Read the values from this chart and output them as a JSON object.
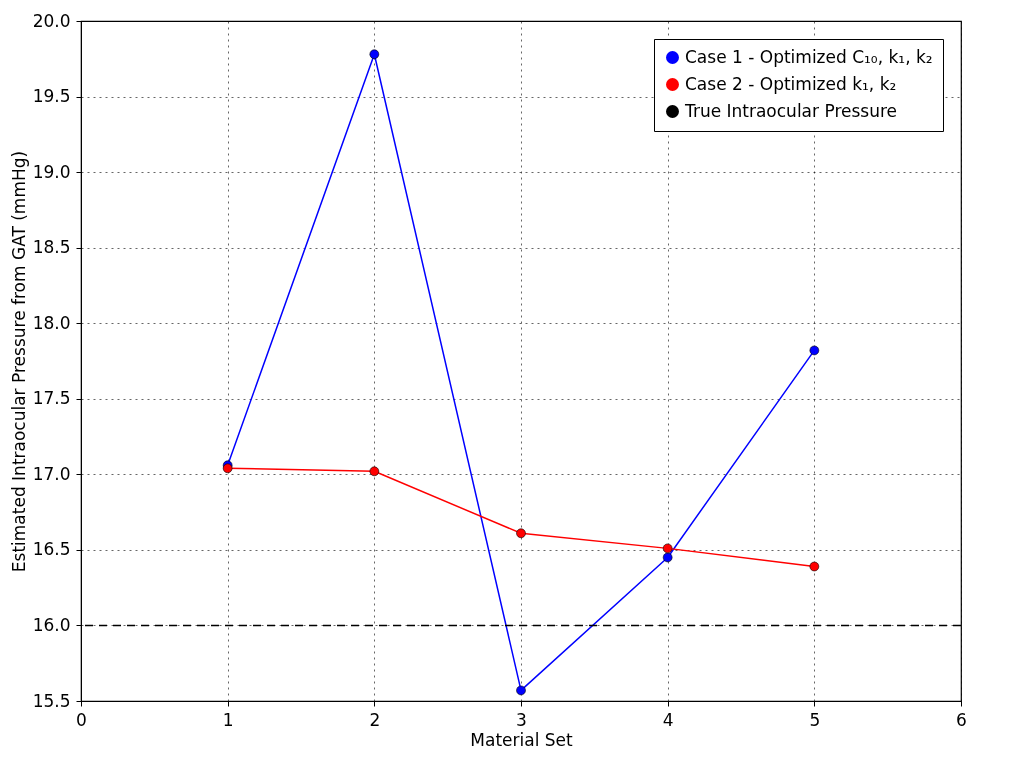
{
  "chart_data": {
    "type": "line",
    "xlabel": "Material Set",
    "ylabel": "Estimated Intraocular Pressure from GAT (mmHg)",
    "x": [
      1,
      2,
      3,
      4,
      5
    ],
    "series": [
      {
        "name": "Case 1 - Optimized C₁₀, k₁, k₂",
        "color": "#0000ff",
        "values": [
          17.06,
          19.78,
          15.57,
          16.45,
          17.82
        ]
      },
      {
        "name": "Case 2 - Optimized k₁, k₂",
        "color": "#ff0000",
        "values": [
          17.04,
          17.02,
          16.61,
          16.51,
          16.39
        ]
      }
    ],
    "ref_lines": [
      {
        "axis": "y",
        "value": 16.0,
        "label": "True Intraocular Pressure",
        "color": "#000000",
        "line_style": "dashed"
      }
    ],
    "xlim": [
      0,
      6
    ],
    "xticks": [
      0,
      1,
      2,
      3,
      4,
      5,
      6
    ],
    "ylim": [
      15.5,
      20.0
    ],
    "yticks": [
      15.5,
      {
        "value": 16,
        "label": "16.0"
      },
      16.5,
      {
        "value": 17,
        "label": "17.0"
      },
      17.5,
      {
        "value": 18,
        "label": "18.0"
      },
      18.5,
      {
        "value": 19,
        "label": "19.0"
      },
      19.5,
      {
        "value": 20,
        "label": "20.0"
      }
    ],
    "grid": true,
    "legend": "top right",
    "marker": "circle",
    "line_style": "solid"
  }
}
